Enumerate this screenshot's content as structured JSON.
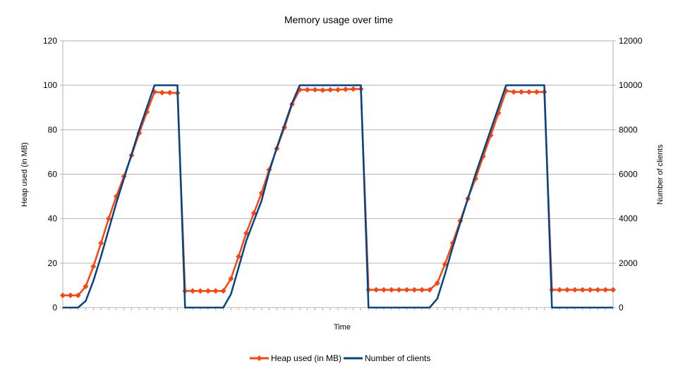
{
  "chart_data": {
    "type": "line",
    "title": "Memory usage over time",
    "xlabel": "Time",
    "ylabel": "Heap used (in MB)",
    "y2label": "Number of clients",
    "ylim": [
      0,
      120
    ],
    "y2lim": [
      0,
      12000
    ],
    "yticks": [
      "0",
      "20",
      "40",
      "60",
      "80",
      "100",
      "120"
    ],
    "y2ticks": [
      "0",
      "2000",
      "4000",
      "6000",
      "8000",
      "10000",
      "12000"
    ],
    "grid": true,
    "legend_position": "bottom",
    "series": [
      {
        "name": "Heap used (in MB)",
        "axis": "left",
        "color": "#ff420e",
        "marker": "diamond",
        "values": [
          5.5,
          5.5,
          5.5,
          9.5,
          18.5,
          29,
          40,
          50,
          59,
          68.5,
          78.5,
          88,
          97,
          96.7,
          96.7,
          96.5,
          7.5,
          7.5,
          7.5,
          7.5,
          7.5,
          7.5,
          13,
          23,
          33.5,
          42.5,
          51.5,
          62,
          71.5,
          81,
          91.5,
          98,
          98,
          98,
          97.8,
          98,
          98,
          98.2,
          98.3,
          98.3,
          8,
          8,
          8,
          8,
          8,
          8,
          8,
          8,
          8,
          11,
          19.5,
          29,
          39,
          49,
          58,
          68,
          77.5,
          87.5,
          97.5,
          97,
          97,
          97,
          97,
          97,
          8,
          8,
          8,
          8,
          8,
          8,
          8,
          8,
          8
        ]
      },
      {
        "name": "Number of clients",
        "axis": "right",
        "color": "#004586",
        "values": [
          0,
          0,
          0,
          300,
          1200,
          2300,
          3500,
          4700,
          5800,
          6900,
          8000,
          9000,
          10000,
          10000,
          10000,
          10000,
          0,
          0,
          0,
          0,
          0,
          0,
          600,
          1800,
          3000,
          3900,
          4800,
          6100,
          7200,
          8200,
          9200,
          10000,
          10000,
          10000,
          10000,
          10000,
          10000,
          10000,
          10000,
          10000,
          0,
          0,
          0,
          0,
          0,
          0,
          0,
          0,
          0,
          400,
          1500,
          2700,
          3800,
          4900,
          6000,
          7000,
          8000,
          9000,
          10000,
          10000,
          10000,
          10000,
          10000,
          10000,
          0,
          0,
          0,
          0,
          0,
          0,
          0,
          0,
          0
        ]
      }
    ]
  }
}
